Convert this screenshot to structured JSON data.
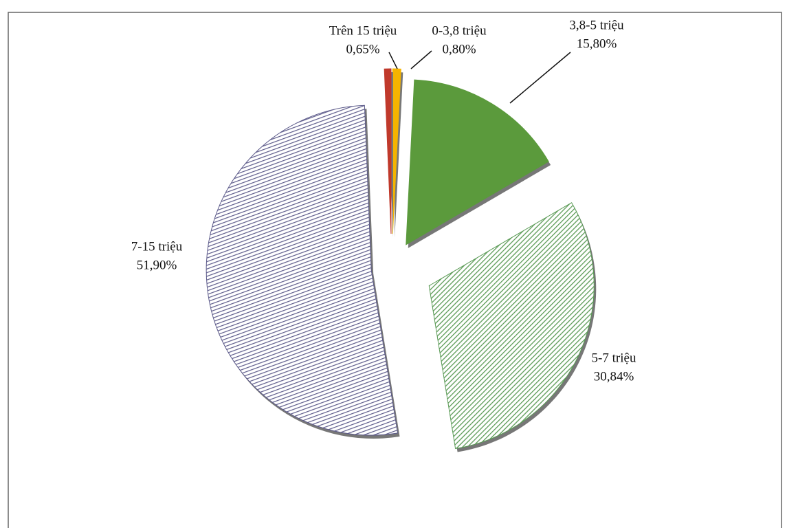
{
  "chart_data": {
    "type": "pie",
    "categories": [
      "0-3,8 triệu",
      "3,8-5 triệu",
      "5-7 triệu",
      "7-15 triệu",
      "Trên 15 triệu"
    ],
    "values": [
      0.8,
      15.8,
      30.84,
      51.9,
      0.65
    ],
    "value_labels": [
      "0,80%",
      "15,80%",
      "30,84%",
      "51,90%",
      "0,65%"
    ],
    "colors": [
      "#f5b400",
      "#5b9a3c",
      "#5a9a55",
      "#5c5a8a",
      "#c0392b"
    ],
    "hatched": [
      false,
      false,
      true,
      true,
      false
    ]
  }
}
